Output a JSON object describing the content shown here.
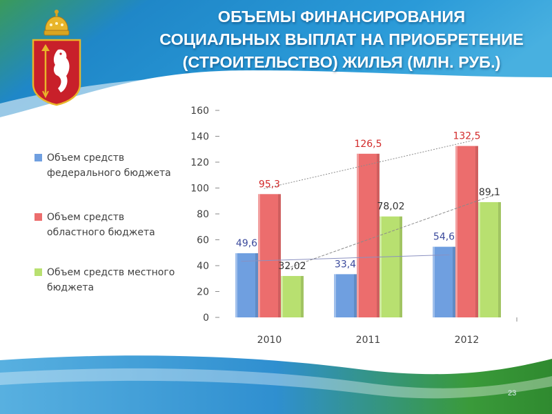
{
  "title_lines": [
    "ОБЪЕМЫ ФИНАНСИРОВАНИЯ",
    "СОЦИАЛЬНЫХ ВЫПЛАТ НА ПРИОБРЕТЕНИЕ",
    "(СТРОИТЕЛЬСТВО) ЖИЛЬЯ (МЛН. РУБ.)"
  ],
  "page_number": "23",
  "colors": {
    "title": "#ffffff",
    "background_top": "#2a8fcf",
    "background_bottom": "#3aa44a",
    "emblem_red": "#c8202a",
    "emblem_gold": "#e8b52a"
  },
  "icons": {
    "emblem": "coat-of-arms-sverdlovsk-emblem"
  },
  "chart_data": {
    "type": "bar",
    "categories": [
      "2010",
      "2011",
      "2012"
    ],
    "series": [
      {
        "name": "Объем средств федерального бюджета",
        "values": [
          49.6,
          33.4,
          54.6
        ],
        "labels": [
          "49,6",
          "33,4",
          "54,6"
        ],
        "color": "#6f9fe0",
        "label_color": "#3b4a9c"
      },
      {
        "name": "Объем средств областного бюджета",
        "values": [
          95.3,
          126.5,
          132.5
        ],
        "labels": [
          "95,3",
          "126,5",
          "132,5"
        ],
        "color": "#ec6d6d",
        "label_color": "#d22a2a"
      },
      {
        "name": "Объем средств местного бюджета",
        "values": [
          32.02,
          78.02,
          89.1
        ],
        "labels": [
          "32,02",
          "78,02",
          "89,1"
        ],
        "color": "#b8e070",
        "label_color": "#333333"
      }
    ],
    "ylim": [
      0,
      160
    ],
    "yticks": [
      "0",
      "20",
      "40",
      "60",
      "80",
      "100",
      "120",
      "140",
      "160"
    ],
    "grid": false,
    "legend_position": "left",
    "trendlines": true
  }
}
